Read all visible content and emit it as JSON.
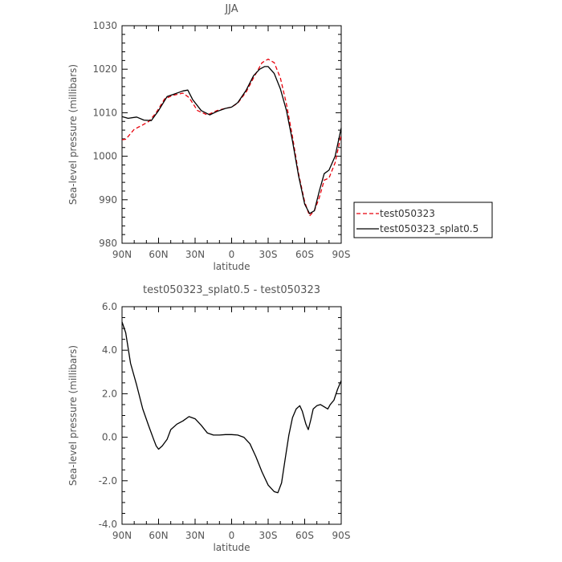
{
  "chart_data": [
    {
      "type": "line",
      "title": "JJA",
      "xlabel": "latitude",
      "ylabel": "Sea-level pressure (millibars)",
      "xticks": [
        "90N",
        "60N",
        "30N",
        "0",
        "30S",
        "60S",
        "90S"
      ],
      "yticks": [
        "980",
        "990",
        "1000",
        "1010",
        "1020",
        "1030"
      ],
      "xlim": [
        -90,
        90
      ],
      "ylim": [
        980,
        1030
      ],
      "grid": false,
      "legend": "right",
      "series": [
        {
          "name": "test050323",
          "color": "#e8000b",
          "style": "dashed",
          "points": [
            [
              -90,
              1003.8
            ],
            [
              -87,
              1003.9
            ],
            [
              -80,
              1006.2
            ],
            [
              -73,
              1007.2
            ],
            [
              -68,
              1008.0
            ],
            [
              -62,
              1010.0
            ],
            [
              -55,
              1013.2
            ],
            [
              -48,
              1014.0
            ],
            [
              -40,
              1014.5
            ],
            [
              -35,
              1013.5
            ],
            [
              -28,
              1010.5
            ],
            [
              -20,
              1009.5
            ],
            [
              -12,
              1010.5
            ],
            [
              -5,
              1011.0
            ],
            [
              0,
              1011.3
            ],
            [
              5,
              1012.2
            ],
            [
              12,
              1014.8
            ],
            [
              18,
              1018.0
            ],
            [
              25,
              1021.5
            ],
            [
              30,
              1022.3
            ],
            [
              35,
              1021.5
            ],
            [
              40,
              1018.0
            ],
            [
              45,
              1012.0
            ],
            [
              50,
              1004.5
            ],
            [
              55,
              996.0
            ],
            [
              60,
              989.5
            ],
            [
              64,
              986.3
            ],
            [
              68,
              987.5
            ],
            [
              72,
              990.5
            ],
            [
              76,
              994.5
            ],
            [
              80,
              995.0
            ],
            [
              85,
              998.5
            ],
            [
              90,
              1005.0
            ]
          ]
        },
        {
          "name": "test050323_splat0.5",
          "color": "#000000",
          "style": "solid",
          "points": [
            [
              -90,
              1009.1
            ],
            [
              -85,
              1008.7
            ],
            [
              -78,
              1009.0
            ],
            [
              -72,
              1008.3
            ],
            [
              -66,
              1008.2
            ],
            [
              -60,
              1010.5
            ],
            [
              -53,
              1013.7
            ],
            [
              -47,
              1014.3
            ],
            [
              -40,
              1015.0
            ],
            [
              -36,
              1015.2
            ],
            [
              -32,
              1013.0
            ],
            [
              -25,
              1010.5
            ],
            [
              -18,
              1009.5
            ],
            [
              -12,
              1010.3
            ],
            [
              -5,
              1011.0
            ],
            [
              0,
              1011.3
            ],
            [
              5,
              1012.3
            ],
            [
              12,
              1015.2
            ],
            [
              18,
              1018.5
            ],
            [
              23,
              1020.0
            ],
            [
              27,
              1020.6
            ],
            [
              30,
              1020.6
            ],
            [
              35,
              1019.0
            ],
            [
              40,
              1015.5
            ],
            [
              45,
              1010.5
            ],
            [
              50,
              1003.5
            ],
            [
              55,
              995.5
            ],
            [
              60,
              989.0
            ],
            [
              64,
              986.8
            ],
            [
              68,
              987.5
            ],
            [
              72,
              992.0
            ],
            [
              76,
              996.0
            ],
            [
              80,
              996.8
            ],
            [
              85,
              1000.0
            ],
            [
              90,
              1006.5
            ]
          ]
        }
      ]
    },
    {
      "type": "line",
      "title": "test050323_splat0.5 - test050323",
      "xlabel": "latitude",
      "ylabel": "Sea-level pressure (millibars)",
      "xticks": [
        "90N",
        "60N",
        "30N",
        "0",
        "30S",
        "60S",
        "90S"
      ],
      "yticks": [
        "-4.0",
        "-2.0",
        "0.0",
        "2.0",
        "4.0",
        "6.0"
      ],
      "xlim": [
        -90,
        90
      ],
      "ylim": [
        -4,
        6
      ],
      "grid": false,
      "series": [
        {
          "color": "#000000",
          "style": "solid",
          "points": [
            [
              -90,
              5.3
            ],
            [
              -87,
              4.8
            ],
            [
              -83,
              3.4
            ],
            [
              -78,
              2.4
            ],
            [
              -73,
              1.3
            ],
            [
              -68,
              0.5
            ],
            [
              -64,
              -0.1
            ],
            [
              -62,
              -0.4
            ],
            [
              -60,
              -0.55
            ],
            [
              -57,
              -0.4
            ],
            [
              -53,
              -0.1
            ],
            [
              -50,
              0.35
            ],
            [
              -45,
              0.6
            ],
            [
              -40,
              0.75
            ],
            [
              -35,
              0.95
            ],
            [
              -30,
              0.85
            ],
            [
              -25,
              0.55
            ],
            [
              -20,
              0.2
            ],
            [
              -15,
              0.1
            ],
            [
              -10,
              0.1
            ],
            [
              -5,
              0.12
            ],
            [
              0,
              0.12
            ],
            [
              5,
              0.1
            ],
            [
              10,
              0.0
            ],
            [
              15,
              -0.3
            ],
            [
              20,
              -0.9
            ],
            [
              25,
              -1.6
            ],
            [
              30,
              -2.2
            ],
            [
              35,
              -2.5
            ],
            [
              38,
              -2.55
            ],
            [
              41,
              -2.1
            ],
            [
              44,
              -1.0
            ],
            [
              47,
              0.1
            ],
            [
              50,
              0.9
            ],
            [
              53,
              1.3
            ],
            [
              56,
              1.45
            ],
            [
              58,
              1.2
            ],
            [
              61,
              0.6
            ],
            [
              63,
              0.35
            ],
            [
              65,
              0.8
            ],
            [
              67,
              1.3
            ],
            [
              70,
              1.45
            ],
            [
              73,
              1.5
            ],
            [
              76,
              1.4
            ],
            [
              79,
              1.3
            ],
            [
              81,
              1.5
            ],
            [
              84,
              1.7
            ],
            [
              87,
              2.2
            ],
            [
              90,
              2.6
            ]
          ]
        }
      ]
    }
  ]
}
